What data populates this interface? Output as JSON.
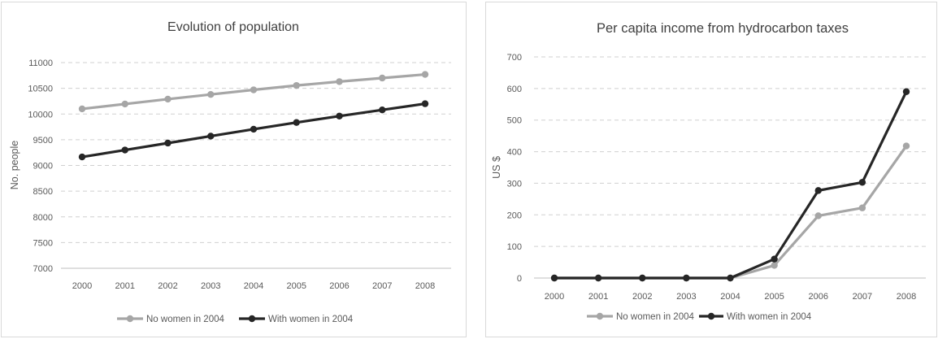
{
  "chart_data": [
    {
      "type": "line",
      "title": "Evolution of population",
      "xlabel": "",
      "ylabel": "No. people",
      "categories": [
        "2000",
        "2001",
        "2002",
        "2003",
        "2004",
        "2005",
        "2006",
        "2007",
        "2008"
      ],
      "ylim": [
        7000,
        11000
      ],
      "yticks": [
        7000,
        7500,
        8000,
        8500,
        9000,
        9500,
        10000,
        10500,
        11000
      ],
      "grid": true,
      "legend": "bottom",
      "series": [
        {
          "name": "No women in 2004",
          "color": "#a6a6a6",
          "values": [
            10100,
            10195,
            10290,
            10380,
            10470,
            10555,
            10630,
            10700,
            10770
          ]
        },
        {
          "name": "With women in 2004",
          "color": "#262626",
          "values": [
            9165,
            9300,
            9435,
            9570,
            9705,
            9835,
            9960,
            10080,
            10200
          ]
        }
      ]
    },
    {
      "type": "line",
      "title": "Per capita income from hydrocarbon taxes",
      "xlabel": "",
      "ylabel": "US $",
      "categories": [
        "2000",
        "2001",
        "2002",
        "2003",
        "2004",
        "2005",
        "2006",
        "2007",
        "2008"
      ],
      "ylim": [
        0,
        700
      ],
      "yticks": [
        0,
        100,
        200,
        300,
        400,
        500,
        600,
        700
      ],
      "grid": true,
      "legend": "bottom",
      "series": [
        {
          "name": "No women in 2004",
          "color": "#a6a6a6",
          "values": [
            0,
            0,
            0,
            0,
            0,
            40,
            197,
            222,
            418
          ]
        },
        {
          "name": "With women in 2004",
          "color": "#262626",
          "values": [
            0,
            0,
            0,
            0,
            0,
            60,
            277,
            303,
            590
          ]
        }
      ]
    }
  ]
}
